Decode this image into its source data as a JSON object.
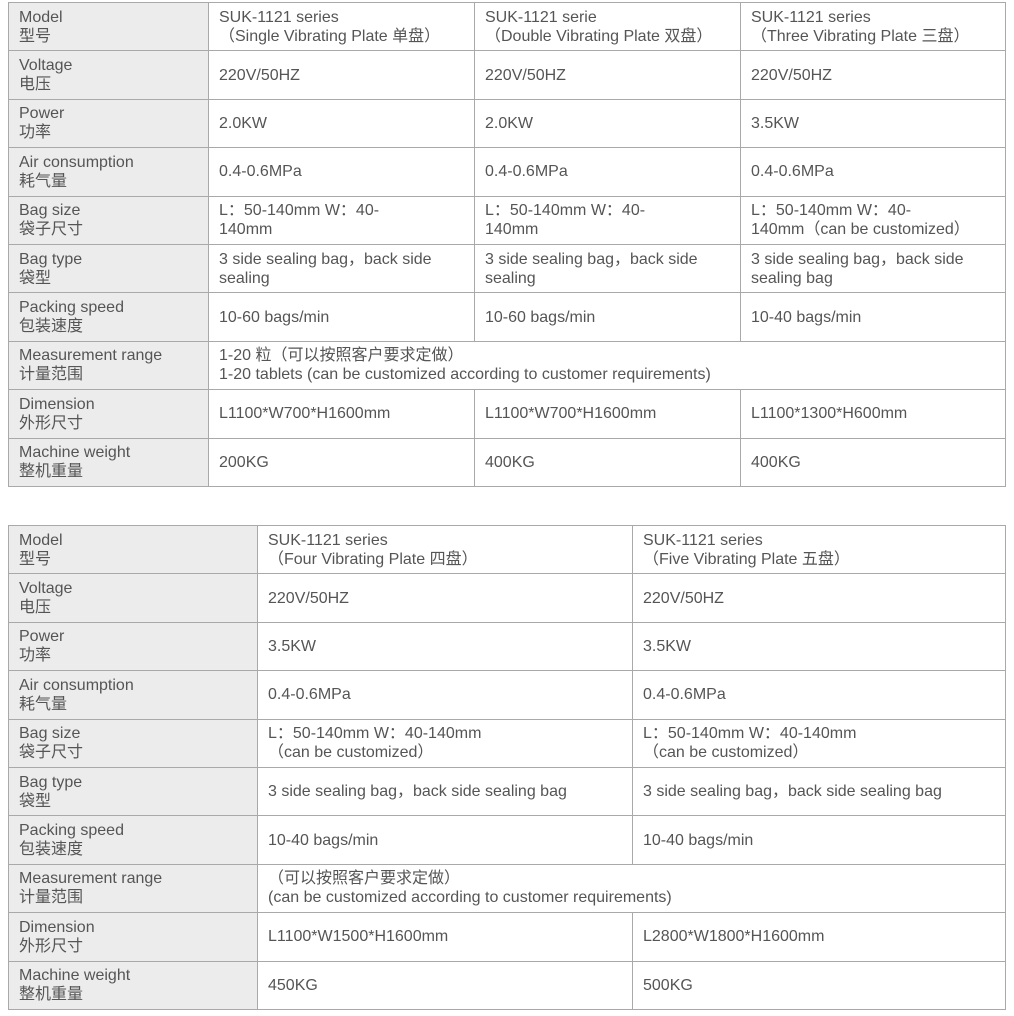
{
  "row_labels": [
    {
      "en": "Model",
      "zh": "型号"
    },
    {
      "en": "Voltage",
      "zh": "电压"
    },
    {
      "en": "Power",
      "zh": "功率"
    },
    {
      "en": "Air consumption",
      "zh": "耗气量"
    },
    {
      "en": "Bag size",
      "zh": "袋子尺寸"
    },
    {
      "en": "Bag type",
      "zh": "袋型"
    },
    {
      "en": "Packing speed",
      "zh": "包装速度"
    },
    {
      "en": "Measurement range",
      "zh": "计量范围"
    },
    {
      "en": "Dimension",
      "zh": "外形尺寸"
    },
    {
      "en": "Machine weight",
      "zh": "整机重量"
    }
  ],
  "table1": {
    "columns": [
      {
        "model": [
          "SUK-1121 series",
          "（Single  Vibrating Plate  单盘）"
        ],
        "voltage": "220V/50HZ",
        "power": "2.0KW",
        "air": "0.4-0.6MPa",
        "bag_size": [
          "L：50-140mm W：40-",
          "140mm"
        ],
        "bag_type": [
          "3 side sealing bag，back side",
          "sealing"
        ],
        "speed": "10-60 bags/min",
        "dimension": "L1100*W700*H1600mm",
        "weight": "200KG"
      },
      {
        "model": [
          "SUK-1121 serie",
          "（Double  Vibrating Plate  双盘）"
        ],
        "voltage": "220V/50HZ",
        "power": "2.0KW",
        "air": "0.4-0.6MPa",
        "bag_size": [
          "L：50-140mm W：40-",
          "140mm"
        ],
        "bag_type": [
          "3 side sealing bag，back side",
          "sealing"
        ],
        "speed": "10-60 bags/min",
        "dimension": "L1100*W700*H1600mm",
        "weight": "400KG"
      },
      {
        "model": [
          "SUK-1121 series",
          "（Three  Vibrating Plate  三盘）"
        ],
        "voltage": "220V/50HZ",
        "power": "3.5KW",
        "air": "0.4-0.6MPa",
        "bag_size": [
          "L：50-140mm W：40-",
          "140mm（can be customized）"
        ],
        "bag_type": [
          "3 side sealing bag，back side",
          "sealing bag"
        ],
        "speed": "10-40 bags/min",
        "dimension": "L1100*1300*H600mm",
        "weight": "400KG"
      }
    ],
    "measurement": [
      "1-20 粒（可以按照客户要求定做）",
      "1-20 tablets (can be customized according to customer requirements)"
    ]
  },
  "table2": {
    "columns": [
      {
        "model": [
          "SUK-1121 series",
          "（Four  Vibrating Plate  四盘）"
        ],
        "voltage": "220V/50HZ",
        "power": "3.5KW",
        "air": "0.4-0.6MPa",
        "bag_size": [
          "L：50-140mm W：40-140mm",
          "（can be customized）"
        ],
        "bag_type": "3 side sealing bag，back side sealing bag",
        "speed": "10-40 bags/min",
        "dimension": "L1100*W1500*H1600mm",
        "weight": "450KG"
      },
      {
        "model": [
          "SUK-1121 series",
          "（Five  Vibrating Plate  五盘）"
        ],
        "voltage": "220V/50HZ",
        "power": "3.5KW",
        "air": "0.4-0.6MPa",
        "bag_size": [
          "L：50-140mm W：40-140mm",
          "（can be customized）"
        ],
        "bag_type": "3 side sealing bag，back side sealing bag",
        "speed": "10-40 bags/min",
        "dimension": "L2800*W1800*H1600mm",
        "weight": "500KG"
      }
    ],
    "measurement": [
      "（可以按照客户要求定做）",
      "(can be customized according to customer requirements)"
    ]
  }
}
